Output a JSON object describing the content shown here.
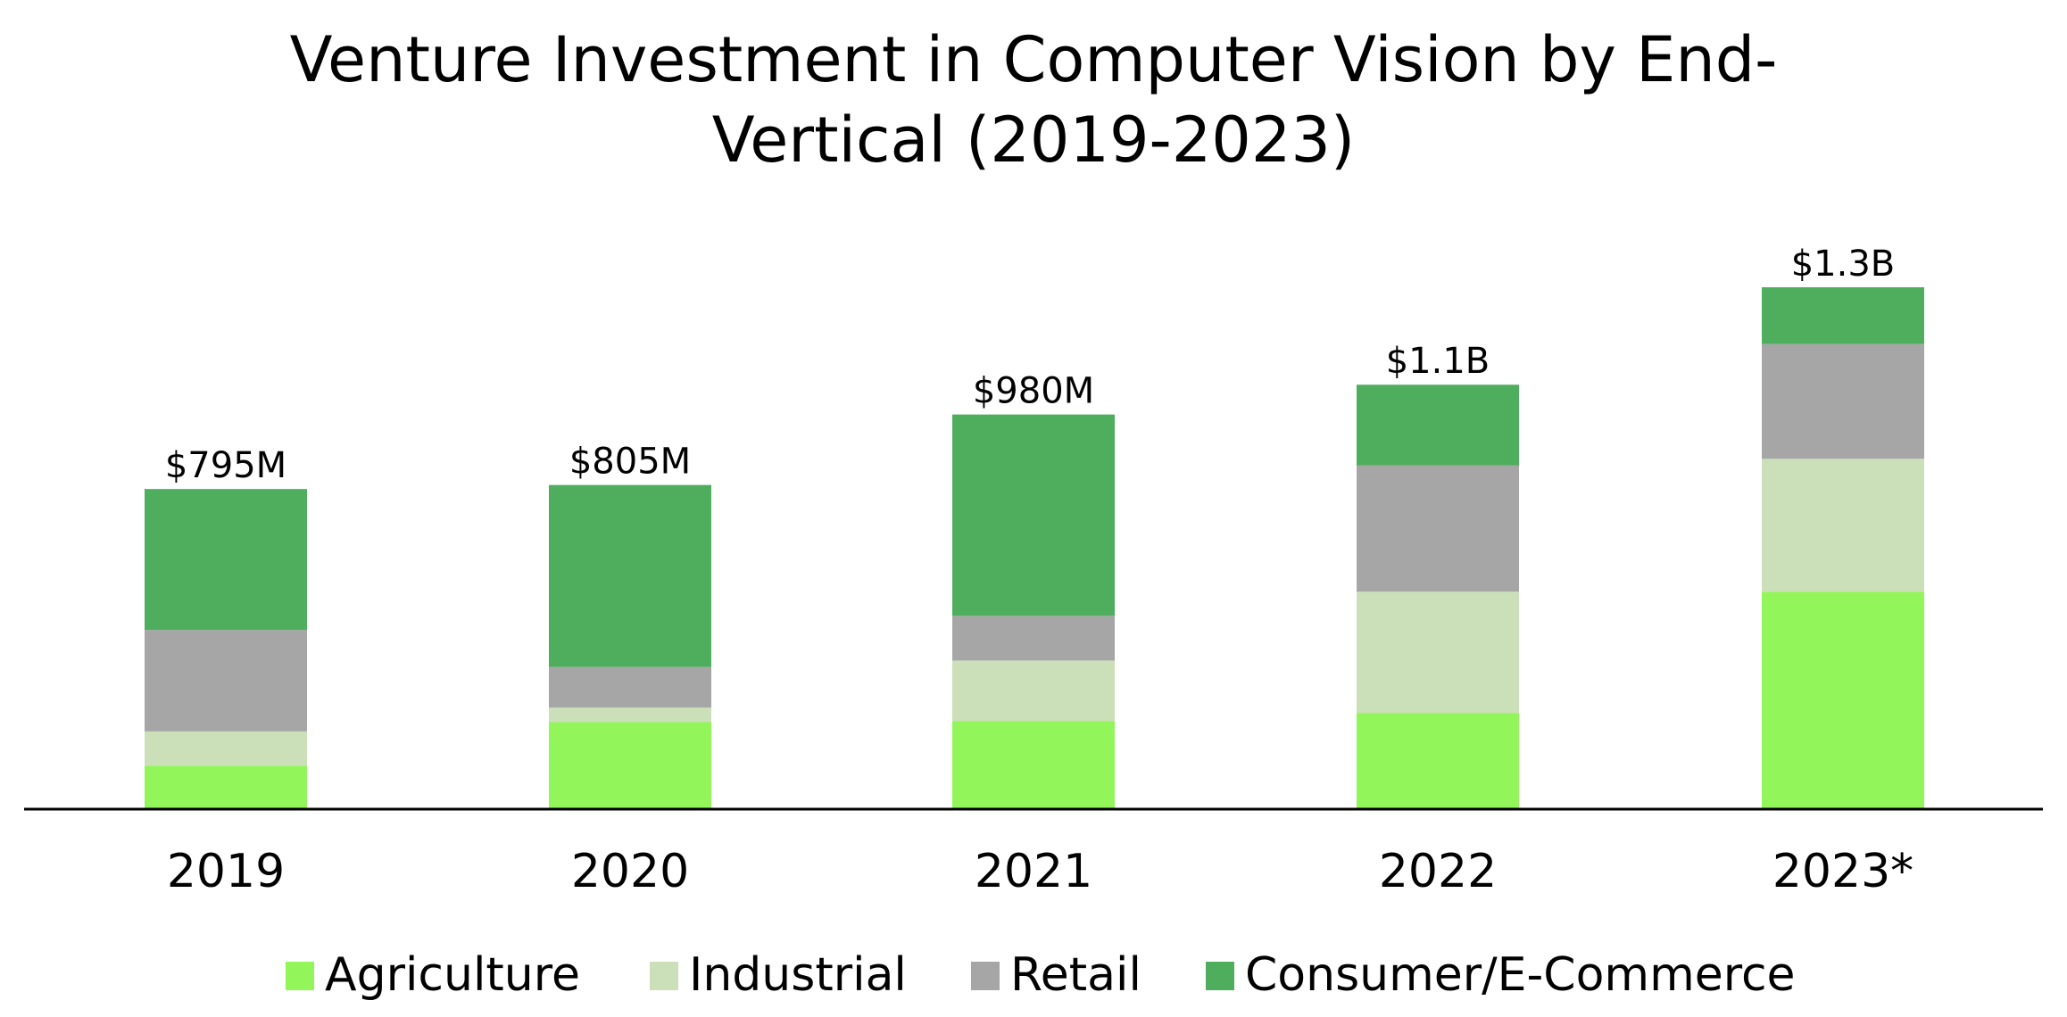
{
  "chart_data": {
    "type": "stacked_bar",
    "title": "Venture Investment in Computer Vision by End-Vertical (2019-2023)",
    "categories": [
      "2019",
      "2020",
      "2021",
      "2022",
      "2023*"
    ],
    "series": [
      {
        "name": "Agriculture",
        "color": "#92f55a",
        "values": [
          108,
          216,
          219,
          239,
          540
        ]
      },
      {
        "name": "Industrial",
        "color": "#cbe0b8",
        "values": [
          85,
          36,
          150,
          301,
          330
        ]
      },
      {
        "name": "Retail",
        "color": "#a6a6a6",
        "values": [
          252,
          101,
          111,
          314,
          285
        ]
      },
      {
        "name": "Consumer/E-Commerce",
        "color": "#4fae5d",
        "values": [
          350,
          452,
          500,
          200,
          141
        ]
      }
    ],
    "totals": {
      "values": [
        795,
        805,
        980,
        1054,
        1296
      ],
      "value_labels": [
        "$795M",
        "$805M",
        "$980M",
        "$1.1B",
        "$1.3B"
      ]
    },
    "legend": "bottom"
  }
}
